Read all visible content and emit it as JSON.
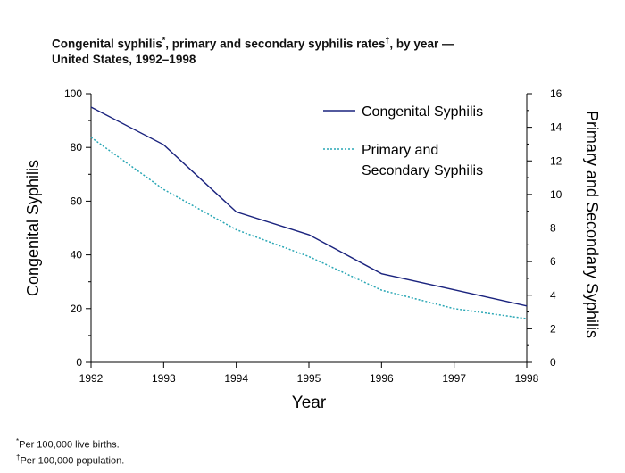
{
  "title": {
    "line1_a": "Congenital syphilis",
    "line1_mark1": "*",
    "line1_b": ", primary and secondary syphilis rates",
    "line1_mark2": "†",
    "line1_c": ", by year —",
    "line2": "United States, 1992–1998"
  },
  "footnotes": {
    "note1_mark": "*",
    "note1": "Per 100,000 live births.",
    "note2_mark": "†",
    "note2": "Per 100,000 population."
  },
  "chart_data": {
    "type": "line",
    "x": [
      1992,
      1993,
      1994,
      1995,
      1996,
      1997,
      1998
    ],
    "xlabel": "Year",
    "ylabel_left": "Congenital Syphilis",
    "ylabel_right": "Primary and Secondary Syphilis",
    "ylim_left": [
      0,
      100
    ],
    "ylim_right": [
      0,
      16
    ],
    "yticks_left": [
      0,
      20,
      40,
      60,
      80,
      100
    ],
    "yticks_right": [
      0,
      2,
      4,
      6,
      8,
      10,
      12,
      14,
      16
    ],
    "grid": false,
    "legend_position": "top-right",
    "series": [
      {
        "name": "Congenital Syphilis",
        "axis": "left",
        "style": "solid",
        "color": "#1a237e",
        "values": [
          95,
          81,
          56,
          47.5,
          33,
          27,
          21
        ]
      },
      {
        "name": "Primary and Secondary Syphilis",
        "legend_lines": [
          "Primary and",
          "Secondary Syphilis"
        ],
        "axis": "right",
        "style": "dotted",
        "color": "#2aa7b5",
        "values": [
          13.4,
          10.3,
          7.9,
          6.3,
          4.3,
          3.2,
          2.6
        ]
      }
    ]
  }
}
